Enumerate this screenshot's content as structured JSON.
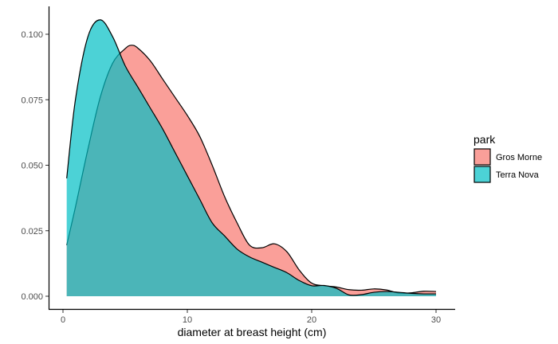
{
  "chart_data": {
    "type": "area",
    "xlabel": "diameter at breast height (cm)",
    "ylabel": "",
    "xlim": [
      -1,
      31
    ],
    "ylim": [
      -0.004,
      0.11
    ],
    "x_ticks": [
      0,
      10,
      20,
      30
    ],
    "x_tick_labels": [
      "0",
      "10",
      "20",
      "30"
    ],
    "y_ticks": [
      0,
      0.025,
      0.05,
      0.075,
      0.1
    ],
    "y_tick_labels": [
      "0.000",
      "0.025",
      "0.050",
      "0.075",
      "0.100"
    ],
    "grid": false,
    "legend": {
      "title": "park",
      "position": "right"
    },
    "series": [
      {
        "name": "Gros Morne",
        "color": "#F8766D",
        "points": [
          [
            0.3,
            0.0195
          ],
          [
            1,
            0.034
          ],
          [
            2,
            0.056
          ],
          [
            3,
            0.076
          ],
          [
            4,
            0.089
          ],
          [
            5,
            0.0945
          ],
          [
            5.5,
            0.0958
          ],
          [
            6,
            0.0948
          ],
          [
            7,
            0.09
          ],
          [
            8,
            0.083
          ],
          [
            9,
            0.076
          ],
          [
            10,
            0.069
          ],
          [
            11,
            0.061
          ],
          [
            12,
            0.05
          ],
          [
            13,
            0.038
          ],
          [
            14,
            0.028
          ],
          [
            15,
            0.0195
          ],
          [
            16,
            0.0185
          ],
          [
            17,
            0.02
          ],
          [
            18,
            0.017
          ],
          [
            19,
            0.01
          ],
          [
            20,
            0.005
          ],
          [
            21,
            0.004
          ],
          [
            22,
            0.0035
          ],
          [
            23,
            0.0025
          ],
          [
            24,
            0.0023
          ],
          [
            25,
            0.0028
          ],
          [
            26,
            0.0024
          ],
          [
            27,
            0.0012
          ],
          [
            28,
            0.0013
          ],
          [
            29,
            0.0019
          ],
          [
            30,
            0.0018
          ]
        ]
      },
      {
        "name": "Terra Nova",
        "color": "#00BFC4",
        "points": [
          [
            0.3,
            0.045
          ],
          [
            1,
            0.075
          ],
          [
            2,
            0.099
          ],
          [
            3,
            0.1055
          ],
          [
            4,
            0.099
          ],
          [
            5,
            0.088
          ],
          [
            6,
            0.08
          ],
          [
            7,
            0.072
          ],
          [
            8,
            0.064
          ],
          [
            9,
            0.055
          ],
          [
            10,
            0.046
          ],
          [
            11,
            0.037
          ],
          [
            12,
            0.028
          ],
          [
            13,
            0.023
          ],
          [
            14,
            0.018
          ],
          [
            15,
            0.015
          ],
          [
            16,
            0.013
          ],
          [
            17,
            0.011
          ],
          [
            18,
            0.009
          ],
          [
            19,
            0.006
          ],
          [
            20,
            0.004
          ],
          [
            21,
            0.0041
          ],
          [
            22,
            0.003
          ],
          [
            23,
            0.0005
          ],
          [
            24,
            0.0006
          ],
          [
            25,
            0.0015
          ],
          [
            26,
            0.0018
          ],
          [
            27,
            0.0015
          ],
          [
            28,
            0.0011
          ],
          [
            29,
            0.0009
          ],
          [
            30,
            0.0009
          ]
        ]
      }
    ]
  }
}
